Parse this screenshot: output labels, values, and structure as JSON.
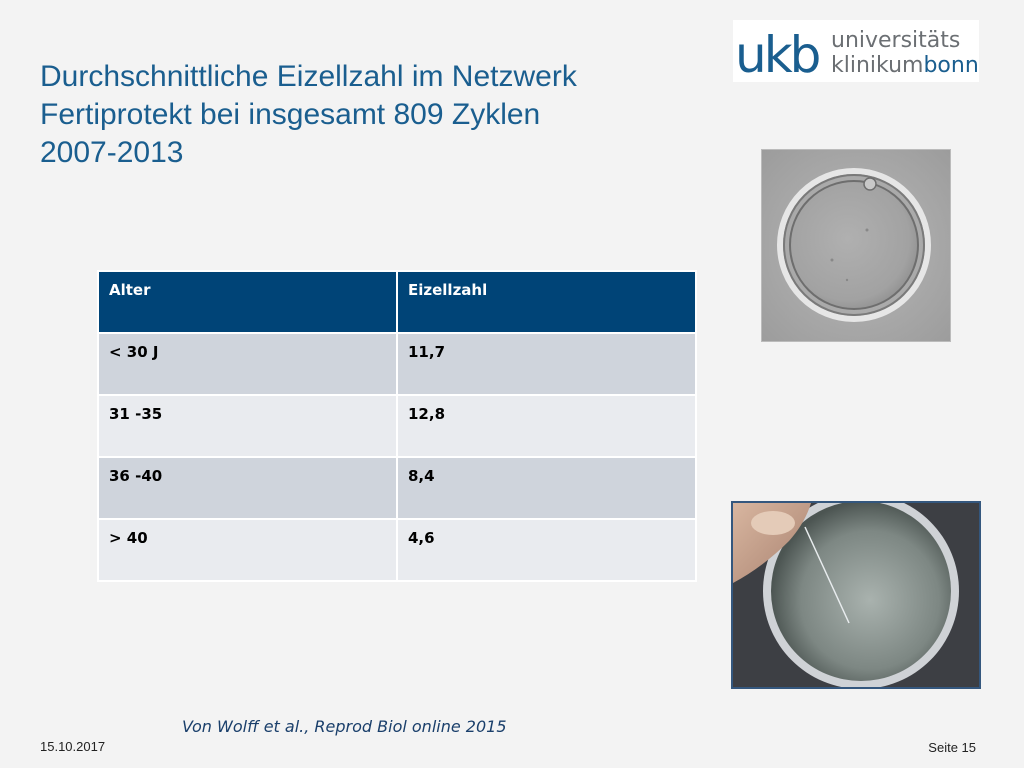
{
  "title": {
    "line1": "Durchschnittliche Eizellzahl im Netzwerk",
    "line2": "Fertiprotekt bei insgesamt 809 Zyklen",
    "line3": "2007-2013"
  },
  "logo": {
    "mark": "ukb",
    "text_line1": "universitäts",
    "text_line2_a": "klinikum",
    "text_line2_b": "bonn",
    "colors": {
      "primary": "#1a5e8f",
      "gray": "#6b6f73"
    }
  },
  "table": {
    "headers": [
      "Alter",
      "Eizellzahl"
    ],
    "rows": [
      [
        "< 30 J",
        "11,7"
      ],
      [
        "31 -35",
        "12,8"
      ],
      [
        "36 -40",
        "8,4"
      ],
      [
        "> 40",
        "4,6"
      ]
    ],
    "colors": {
      "header_bg": "#004477",
      "row_dark": "#cfd4dc",
      "row_light": "#e9ebef"
    }
  },
  "images": {
    "top": "oocyte-microscope-photo",
    "bottom": "culture-dish-photo"
  },
  "citation": "Von Wolff et al., Reprod Biol online 2015",
  "footer": {
    "date": "15.10.2017",
    "page": "Seite 15"
  }
}
